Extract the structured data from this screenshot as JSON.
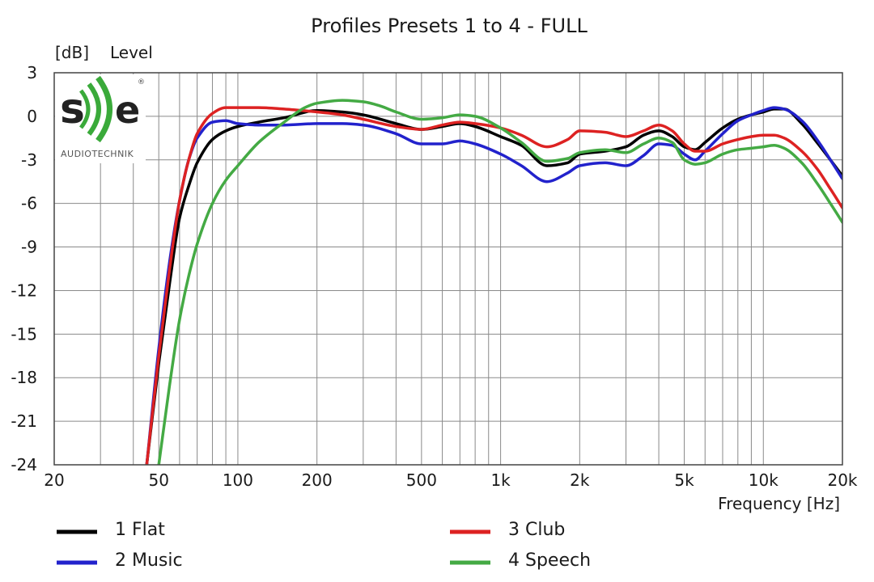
{
  "chart_data": {
    "type": "line",
    "title": "Profiles Presets 1 to 4 - FULL",
    "ylabel_unit": "[dB]",
    "ylabel": "Level",
    "xlabel": "Frequency [Hz]",
    "x_scale": "log",
    "xlim": [
      20,
      20000
    ],
    "ylim": [
      -24,
      3
    ],
    "grid": true,
    "x_ticks": [
      20,
      50,
      100,
      200,
      500,
      1000,
      2000,
      5000,
      10000,
      20000
    ],
    "x_tick_labels": [
      "20",
      "50",
      "100",
      "200",
      "500",
      "1k",
      "2k",
      "5k",
      "10k",
      "20k"
    ],
    "y_ticks": [
      3,
      0,
      -3,
      -6,
      -9,
      -12,
      -15,
      -18,
      -21,
      -24
    ],
    "y_tick_labels": [
      "3",
      "0",
      "-3",
      "-6",
      "-9",
      "-12",
      "-15",
      "-18",
      "-21",
      "-24"
    ],
    "legend_position": "bottom",
    "series": [
      {
        "name": "1 Flat",
        "color": "#000000",
        "x": [
          45,
          50,
          55,
          60,
          65,
          70,
          80,
          90,
          100,
          120,
          150,
          200,
          250,
          300,
          400,
          500,
          600,
          700,
          800,
          1000,
          1200,
          1500,
          1800,
          2000,
          2500,
          3000,
          3500,
          4000,
          4500,
          5000,
          5500,
          6000,
          7000,
          8000,
          9000,
          10000,
          11000,
          12000,
          14000,
          16000,
          18000,
          20000
        ],
        "y": [
          -24,
          -17,
          -11.5,
          -7,
          -4.8,
          -3.2,
          -1.6,
          -1.0,
          -0.7,
          -0.4,
          -0.1,
          0.4,
          0.3,
          0.1,
          -0.5,
          -0.9,
          -0.7,
          -0.5,
          -0.7,
          -1.4,
          -2.0,
          -3.4,
          -3.2,
          -2.6,
          -2.4,
          -2.1,
          -1.3,
          -1.0,
          -1.4,
          -2.1,
          -2.3,
          -1.8,
          -0.8,
          -0.2,
          0.1,
          0.3,
          0.5,
          0.5,
          -0.5,
          -1.8,
          -3.0,
          -4.1
        ]
      },
      {
        "name": "2 Music",
        "color": "#2222cc",
        "x": [
          45,
          50,
          55,
          60,
          65,
          70,
          80,
          90,
          100,
          120,
          150,
          200,
          250,
          300,
          400,
          500,
          600,
          700,
          800,
          1000,
          1200,
          1500,
          1800,
          2000,
          2500,
          3000,
          3500,
          4000,
          4500,
          5000,
          5500,
          6000,
          7000,
          8000,
          9000,
          10000,
          11000,
          12000,
          14000,
          16000,
          18000,
          20000
        ],
        "y": [
          -24,
          -16,
          -10,
          -5.8,
          -3.0,
          -1.5,
          -0.4,
          -0.3,
          -0.5,
          -0.6,
          -0.6,
          -0.5,
          -0.5,
          -0.6,
          -1.2,
          -1.9,
          -1.9,
          -1.7,
          -1.9,
          -2.6,
          -3.4,
          -4.5,
          -3.9,
          -3.4,
          -3.2,
          -3.4,
          -2.7,
          -1.9,
          -2.0,
          -2.6,
          -3.0,
          -2.4,
          -1.2,
          -0.3,
          0.1,
          0.4,
          0.6,
          0.5,
          -0.3,
          -1.6,
          -3.0,
          -4.3
        ]
      },
      {
        "name": "3 Club",
        "color": "#dd2222",
        "x": [
          45,
          50,
          55,
          60,
          65,
          70,
          80,
          90,
          100,
          120,
          150,
          200,
          250,
          300,
          400,
          500,
          600,
          700,
          800,
          1000,
          1200,
          1500,
          1800,
          2000,
          2500,
          3000,
          3500,
          4000,
          4500,
          5000,
          5500,
          6000,
          7000,
          8000,
          9000,
          10000,
          11000,
          12000,
          14000,
          16000,
          18000,
          20000
        ],
        "y": [
          -24,
          -16.5,
          -10.5,
          -5.8,
          -3.0,
          -1.2,
          0.2,
          0.6,
          0.6,
          0.6,
          0.5,
          0.3,
          0.1,
          -0.2,
          -0.7,
          -0.9,
          -0.6,
          -0.4,
          -0.5,
          -0.8,
          -1.3,
          -2.1,
          -1.6,
          -1.0,
          -1.1,
          -1.4,
          -1.0,
          -0.6,
          -1.0,
          -1.9,
          -2.4,
          -2.4,
          -1.9,
          -1.6,
          -1.4,
          -1.3,
          -1.3,
          -1.5,
          -2.4,
          -3.6,
          -5.0,
          -6.3
        ]
      },
      {
        "name": "4 Speech",
        "color": "#44aa44",
        "x": [
          50,
          55,
          60,
          65,
          70,
          80,
          90,
          100,
          120,
          150,
          180,
          200,
          250,
          300,
          350,
          400,
          500,
          600,
          700,
          800,
          1000,
          1200,
          1500,
          1800,
          2000,
          2500,
          3000,
          3500,
          4000,
          4500,
          5000,
          5500,
          6000,
          7000,
          8000,
          9000,
          10000,
          11000,
          12000,
          14000,
          16000,
          18000,
          20000
        ],
        "y": [
          -24,
          -18.5,
          -14,
          -11,
          -8.8,
          -6.0,
          -4.4,
          -3.4,
          -1.8,
          -0.4,
          0.6,
          0.9,
          1.1,
          1.0,
          0.7,
          0.3,
          -0.2,
          -0.1,
          0.1,
          0.0,
          -0.8,
          -1.8,
          -3.1,
          -2.9,
          -2.5,
          -2.3,
          -2.5,
          -1.9,
          -1.5,
          -1.8,
          -3.0,
          -3.3,
          -3.2,
          -2.6,
          -2.3,
          -2.2,
          -2.1,
          -2.0,
          -2.2,
          -3.2,
          -4.6,
          -6.0,
          -7.3
        ]
      }
    ]
  },
  "logo": {
    "letters": "s e",
    "subtitle": "AUDIOTECHNIK",
    "mark": "®"
  }
}
